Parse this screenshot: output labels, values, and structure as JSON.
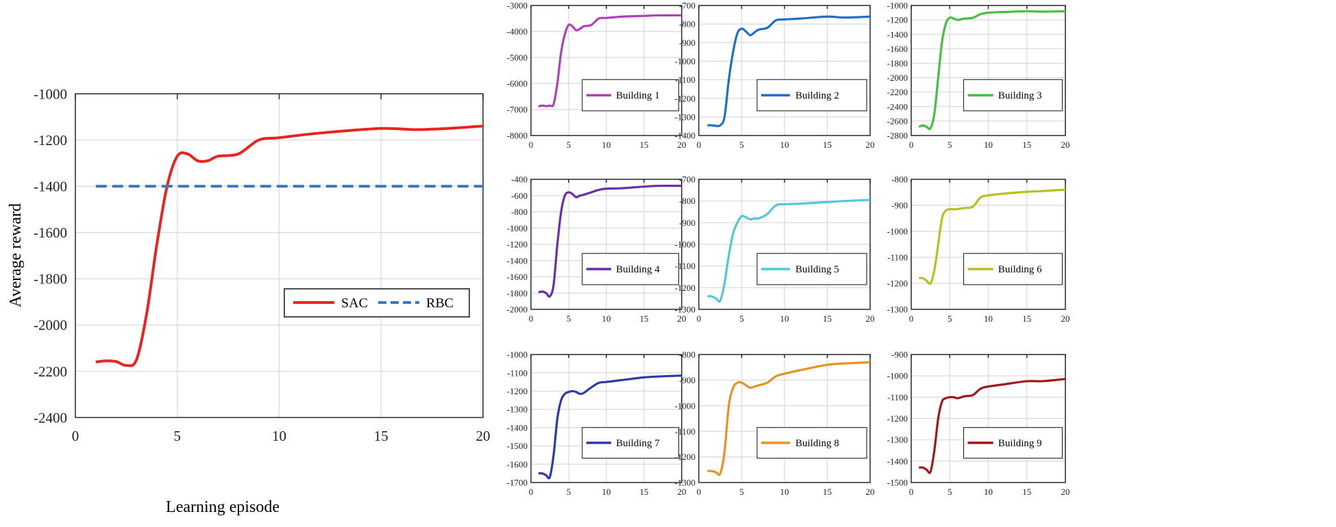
{
  "chart_data": [
    {
      "type": "line",
      "title": "",
      "xlabel": "Learning episode",
      "ylabel": "Average reward",
      "xlim": [
        0,
        20
      ],
      "ylim": [
        -2400,
        -1000
      ],
      "xticks": [
        0,
        5,
        10,
        15,
        20
      ],
      "yticks": [
        -2400,
        -2200,
        -2000,
        -1800,
        -1600,
        -1400,
        -1200,
        -1000
      ],
      "grid": true,
      "legend_position": "lower-right",
      "x": [
        1,
        1.5,
        2,
        2.5,
        3,
        3.5,
        4,
        4.5,
        5,
        5.5,
        6,
        6.5,
        7,
        8,
        9,
        10,
        12,
        15,
        17,
        20
      ],
      "series": [
        {
          "name": "SAC",
          "color": "#e8241e",
          "style": "solid",
          "values": [
            -2160,
            -2155,
            -2158,
            -2175,
            -2150,
            -1950,
            -1650,
            -1400,
            -1270,
            -1260,
            -1290,
            -1290,
            -1270,
            -1260,
            -1200,
            -1190,
            -1170,
            -1150,
            -1155,
            -1140
          ]
        },
        {
          "name": "RBC",
          "color": "#3a78c4",
          "style": "dashed",
          "values": [
            -1400,
            -1400,
            -1400,
            -1400,
            -1400,
            -1400,
            -1400,
            -1400,
            -1400,
            -1400,
            -1400,
            -1400,
            -1400,
            -1400,
            -1400,
            -1400,
            -1400,
            -1400,
            -1400,
            -1400
          ]
        }
      ]
    },
    {
      "type": "line",
      "legend": "Building 1",
      "color": "#b040b8",
      "ylim": [
        -8000,
        -3000
      ],
      "ystep": 1000,
      "xlim": [
        0,
        20
      ],
      "xticks": [
        0,
        5,
        10,
        15,
        20
      ],
      "x": [
        1,
        1.5,
        2,
        2.5,
        3,
        3.5,
        4,
        4.5,
        5,
        5.5,
        6,
        6.5,
        7,
        8,
        9,
        10,
        12,
        15,
        17,
        20
      ],
      "values": [
        -6880,
        -6850,
        -6870,
        -6850,
        -6800,
        -6000,
        -4800,
        -4100,
        -3750,
        -3800,
        -3950,
        -3900,
        -3800,
        -3750,
        -3500,
        -3480,
        -3430,
        -3400,
        -3380,
        -3380
      ]
    },
    {
      "type": "line",
      "legend": "Building 2",
      "color": "#1f6fc8",
      "ylim": [
        -1400,
        -700
      ],
      "ystep": 100,
      "xlim": [
        0,
        20
      ],
      "xticks": [
        0,
        5,
        10,
        15,
        20
      ],
      "x": [
        1,
        1.5,
        2,
        2.5,
        3,
        3.5,
        4,
        4.5,
        5,
        5.5,
        6,
        6.5,
        7,
        8,
        9,
        10,
        12,
        15,
        17,
        20
      ],
      "values": [
        -1345,
        -1345,
        -1348,
        -1345,
        -1300,
        -1100,
        -950,
        -850,
        -825,
        -840,
        -860,
        -845,
        -830,
        -820,
        -780,
        -775,
        -770,
        -760,
        -765,
        -760
      ]
    },
    {
      "type": "line",
      "legend": "Building 3",
      "color": "#44c03c",
      "ylim": [
        -2800,
        -1000
      ],
      "ystep": 200,
      "xlim": [
        0,
        20
      ],
      "xticks": [
        0,
        5,
        10,
        15,
        20
      ],
      "x": [
        1,
        1.5,
        2,
        2.5,
        3,
        3.5,
        4,
        4.5,
        5,
        5.5,
        6,
        6.5,
        7,
        8,
        9,
        10,
        12,
        15,
        17,
        20
      ],
      "values": [
        -2680,
        -2660,
        -2680,
        -2700,
        -2500,
        -2000,
        -1500,
        -1250,
        -1170,
        -1180,
        -1200,
        -1190,
        -1180,
        -1170,
        -1120,
        -1100,
        -1090,
        -1080,
        -1085,
        -1080
      ]
    },
    {
      "type": "line",
      "legend": "Building 4",
      "color": "#6a2eaa",
      "ylim": [
        -2000,
        -400
      ],
      "ystep": 200,
      "xlim": [
        0,
        20
      ],
      "xticks": [
        0,
        5,
        10,
        15,
        20
      ],
      "x": [
        1,
        1.5,
        2,
        2.5,
        3,
        3.5,
        4,
        4.5,
        5,
        5.5,
        6,
        6.5,
        7,
        8,
        9,
        10,
        12,
        15,
        17,
        20
      ],
      "values": [
        -1790,
        -1780,
        -1800,
        -1840,
        -1700,
        -1200,
        -800,
        -600,
        -560,
        -580,
        -620,
        -600,
        -590,
        -560,
        -530,
        -515,
        -510,
        -490,
        -480,
        -480
      ]
    },
    {
      "type": "line",
      "legend": "Building 5",
      "color": "#50c8d8",
      "ylim": [
        -1300,
        -700
      ],
      "ystep": 100,
      "xlim": [
        0,
        20
      ],
      "xticks": [
        0,
        5,
        10,
        15,
        20
      ],
      "x": [
        1,
        1.5,
        2,
        2.5,
        3,
        3.5,
        4,
        4.5,
        5,
        5.5,
        6,
        6.5,
        7,
        8,
        9,
        10,
        12,
        15,
        17,
        20
      ],
      "values": [
        -1240,
        -1240,
        -1250,
        -1260,
        -1180,
        -1050,
        -950,
        -900,
        -870,
        -875,
        -885,
        -880,
        -880,
        -860,
        -820,
        -815,
        -812,
        -805,
        -800,
        -795
      ]
    },
    {
      "type": "line",
      "legend": "Building 6",
      "color": "#b8c020",
      "ylim": [
        -1300,
        -800
      ],
      "ystep": 100,
      "xlim": [
        0,
        20
      ],
      "xticks": [
        0,
        5,
        10,
        15,
        20
      ],
      "x": [
        1,
        1.5,
        2,
        2.5,
        3,
        3.5,
        4,
        4.5,
        5,
        5.5,
        6,
        6.5,
        7,
        8,
        9,
        10,
        12,
        15,
        17,
        20
      ],
      "values": [
        -1180,
        -1180,
        -1190,
        -1200,
        -1150,
        -1050,
        -950,
        -920,
        -915,
        -915,
        -915,
        -912,
        -910,
        -905,
        -870,
        -862,
        -855,
        -848,
        -845,
        -840
      ]
    },
    {
      "type": "line",
      "legend": "Building 7",
      "color": "#2a3aa8",
      "ylim": [
        -1700,
        -1000
      ],
      "ystep": 100,
      "xlim": [
        0,
        20
      ],
      "xticks": [
        0,
        5,
        10,
        15,
        20
      ],
      "x": [
        1,
        1.5,
        2,
        2.5,
        3,
        3.5,
        4,
        4.5,
        5,
        5.5,
        6,
        6.5,
        7,
        8,
        9,
        10,
        12,
        15,
        17,
        20
      ],
      "values": [
        -1650,
        -1650,
        -1660,
        -1670,
        -1550,
        -1350,
        -1250,
        -1215,
        -1205,
        -1200,
        -1205,
        -1215,
        -1210,
        -1180,
        -1155,
        -1150,
        -1140,
        -1125,
        -1120,
        -1115
      ]
    },
    {
      "type": "line",
      "legend": "Building 8",
      "color": "#e89020",
      "ylim": [
        -1300,
        -800
      ],
      "ystep": 100,
      "xlim": [
        0,
        20
      ],
      "xticks": [
        0,
        5,
        10,
        15,
        20
      ],
      "x": [
        1,
        1.5,
        2,
        2.5,
        3,
        3.5,
        4,
        4.5,
        5,
        5.5,
        6,
        6.5,
        7,
        8,
        9,
        10,
        12,
        15,
        17,
        20
      ],
      "values": [
        -1255,
        -1255,
        -1260,
        -1265,
        -1180,
        -1000,
        -930,
        -910,
        -910,
        -920,
        -930,
        -925,
        -920,
        -910,
        -885,
        -875,
        -860,
        -840,
        -835,
        -830
      ]
    },
    {
      "type": "line",
      "legend": "Building 9",
      "color": "#a01818",
      "ylim": [
        -1500,
        -900
      ],
      "ystep": 100,
      "xlim": [
        0,
        20
      ],
      "xticks": [
        0,
        5,
        10,
        15,
        20
      ],
      "x": [
        1,
        1.5,
        2,
        2.5,
        3,
        3.5,
        4,
        4.5,
        5,
        5.5,
        6,
        6.5,
        7,
        8,
        9,
        10,
        12,
        15,
        17,
        20
      ],
      "values": [
        -1430,
        -1430,
        -1440,
        -1450,
        -1350,
        -1200,
        -1120,
        -1105,
        -1100,
        -1100,
        -1105,
        -1100,
        -1095,
        -1090,
        -1060,
        -1050,
        -1040,
        -1025,
        -1025,
        -1015
      ]
    }
  ]
}
